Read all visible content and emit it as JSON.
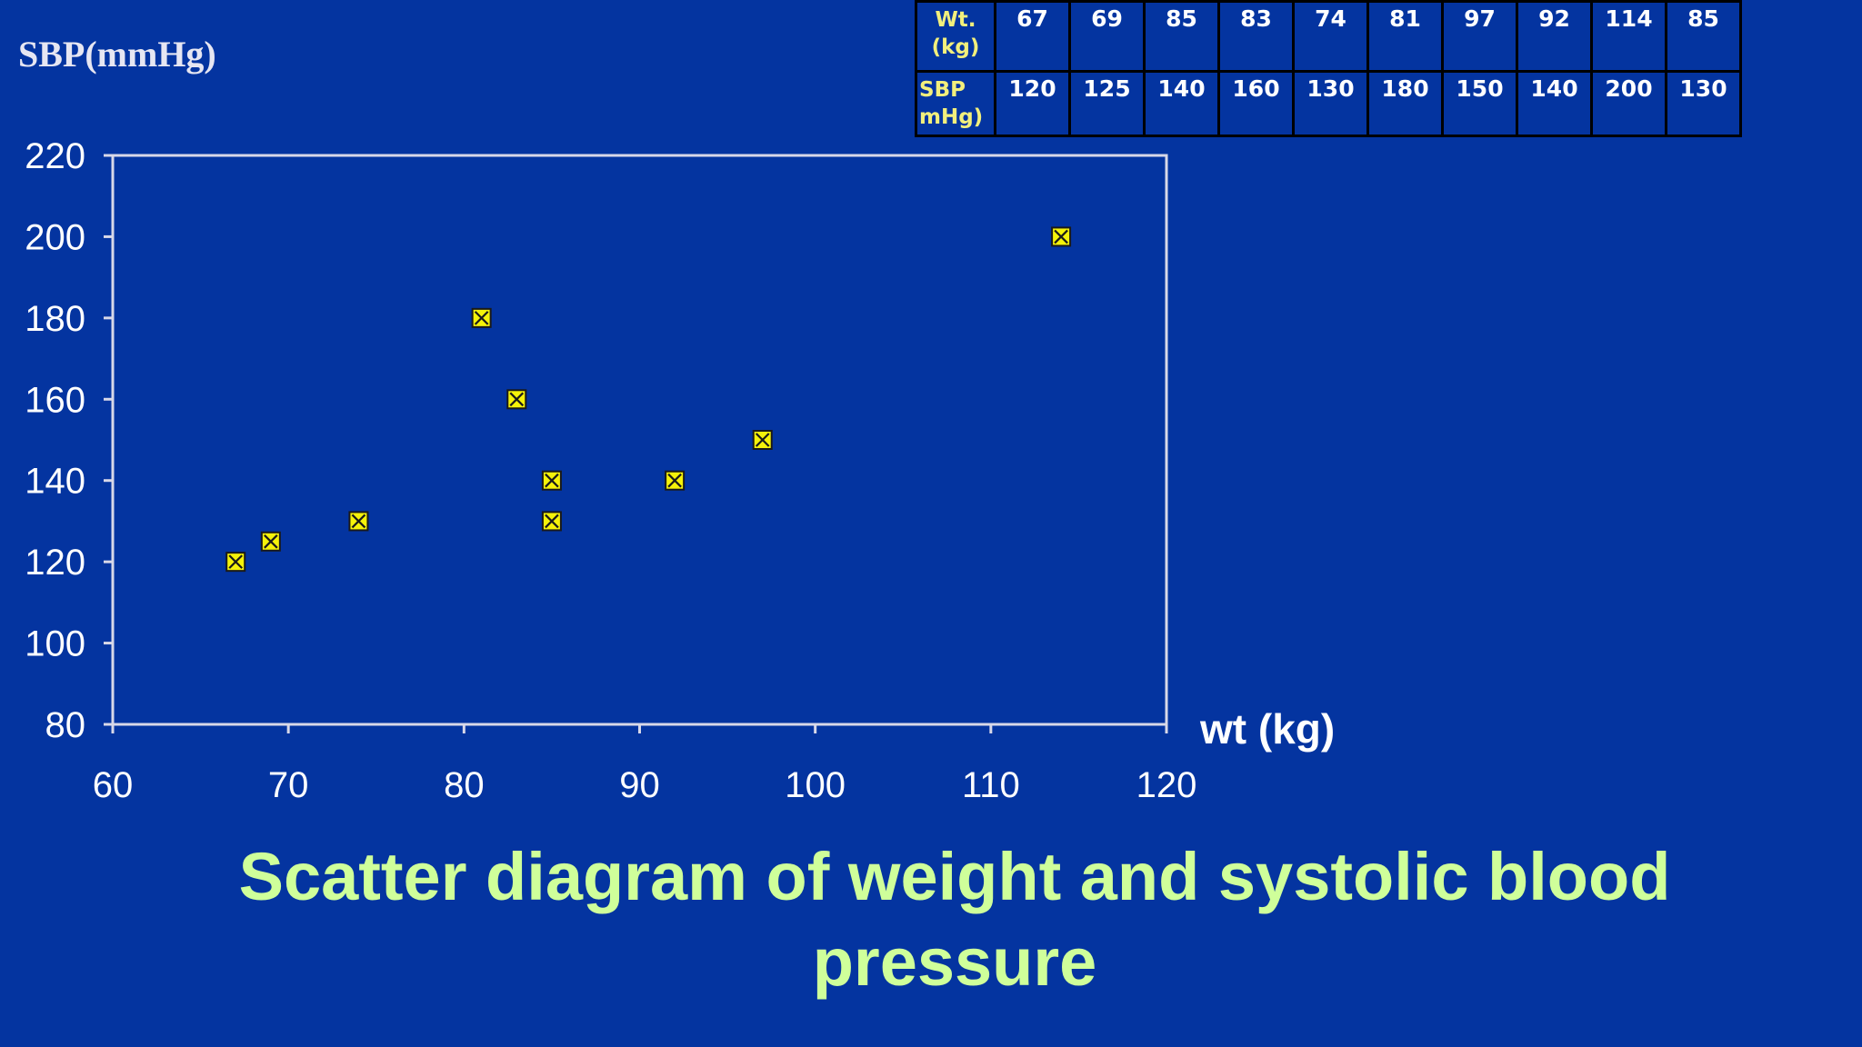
{
  "ylabel": "SBP(mmHg)",
  "xlabel": "wt (kg)",
  "caption": "Scatter diagram of weight and systolic blood pressure",
  "table": {
    "row1_head_line1": "Wt.",
    "row1_head_line2": "(kg)",
    "row2_head_line1": "SBP",
    "row2_head_line2": "mHg)",
    "weights": [
      "67",
      "69",
      "85",
      "83",
      "74",
      "81",
      "97",
      "92",
      "114",
      "85"
    ],
    "sbp": [
      "120",
      "125",
      "140",
      "160",
      "130",
      "180",
      "150",
      "140",
      "200",
      "130"
    ]
  },
  "colors": {
    "background": "#0434a0",
    "marker_fill": "#f5f20a",
    "caption": "#cfff9a",
    "axis": "#d8d8e8"
  },
  "chart_data": {
    "type": "scatter",
    "title": "Scatter diagram of weight and systolic blood pressure",
    "xlabel": "wt (kg)",
    "ylabel": "SBP(mmHg)",
    "xlim": [
      60,
      120
    ],
    "ylim": [
      80,
      220
    ],
    "xticks": [
      60,
      70,
      80,
      90,
      100,
      110,
      120
    ],
    "yticks": [
      80,
      100,
      120,
      140,
      160,
      180,
      200,
      220
    ],
    "grid": false,
    "points": [
      {
        "x": 67,
        "y": 120
      },
      {
        "x": 69,
        "y": 125
      },
      {
        "x": 85,
        "y": 140
      },
      {
        "x": 83,
        "y": 160
      },
      {
        "x": 74,
        "y": 130
      },
      {
        "x": 81,
        "y": 180
      },
      {
        "x": 97,
        "y": 150
      },
      {
        "x": 92,
        "y": 140
      },
      {
        "x": 114,
        "y": 200
      },
      {
        "x": 85,
        "y": 130
      }
    ]
  }
}
